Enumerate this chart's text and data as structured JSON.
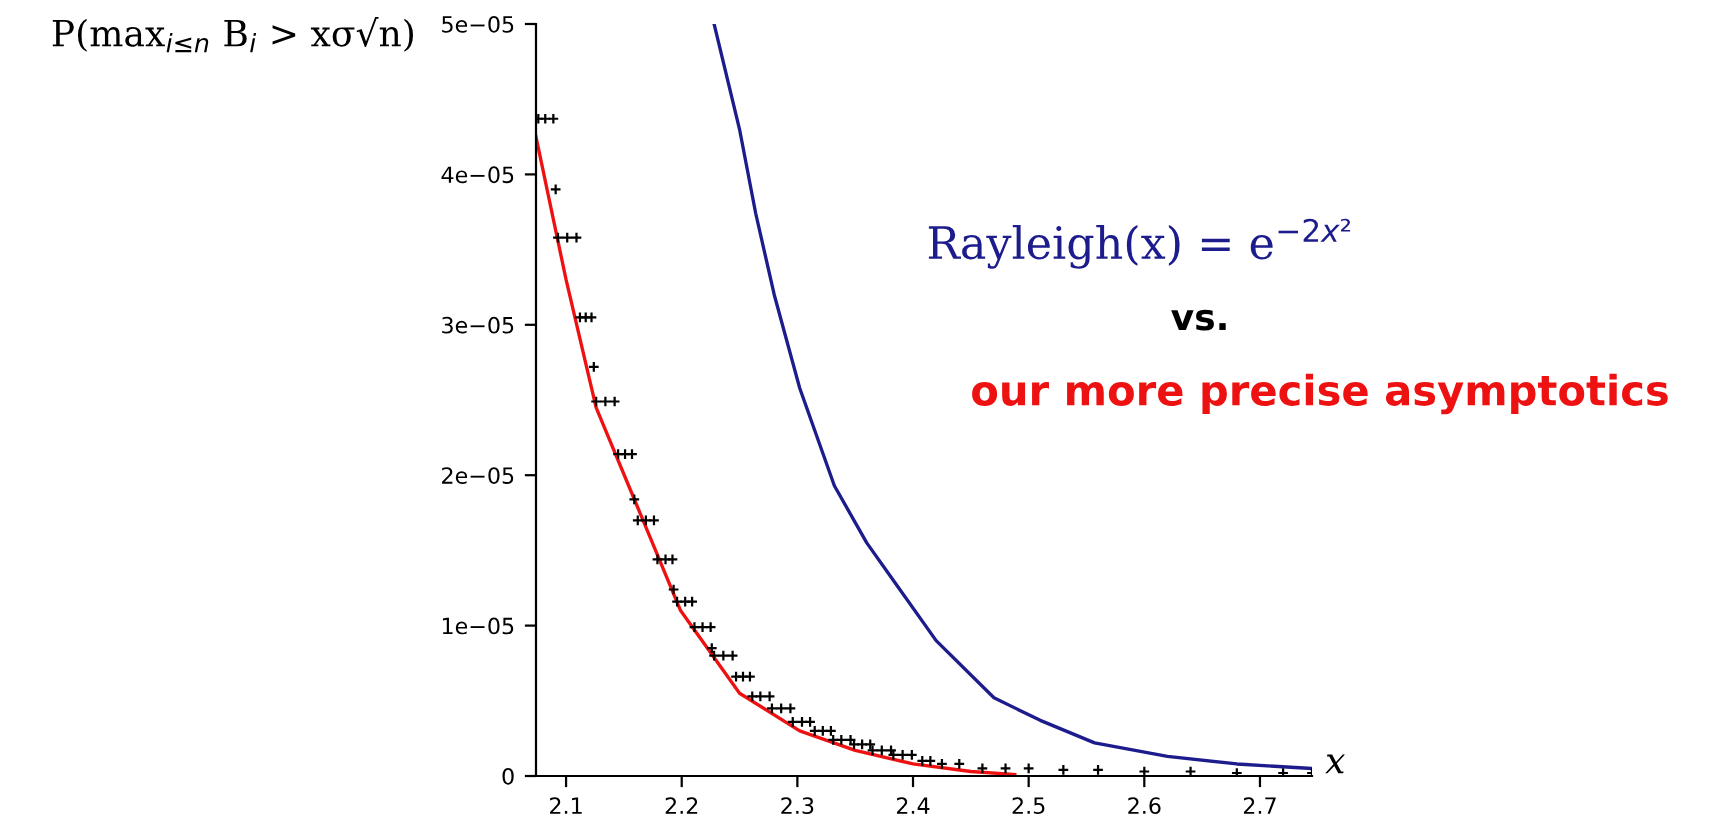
{
  "chart_data": {
    "type": "line",
    "ylabel": "P(max$_{i≤n}$ B$_{i}$ > xσ√n)",
    "xlabel": "x",
    "annotations": [
      "vs."
    ],
    "xlim": [
      2.074,
      2.745
    ],
    "ylim": [
      0,
      5e-05
    ],
    "xticks": [
      2.1,
      2.2,
      2.3,
      2.4,
      2.5,
      2.6,
      2.7
    ],
    "yticks": [
      0,
      {
        "value": 1e-05,
        "label": "1e−05"
      },
      {
        "value": 2e-05,
        "label": "2e−05"
      },
      {
        "value": 3e-05,
        "label": "3e−05"
      },
      {
        "value": 4e-05,
        "label": "4e−05"
      },
      {
        "value": 5e-05,
        "label": "5e−05"
      }
    ],
    "grid": false,
    "legend": false,
    "series": [
      {
        "name": "Rayleigh(x) = e$^{−2x²}$",
        "color": "#1c1c8c",
        "x": [
          2.228,
          2.25,
          2.264,
          2.28,
          2.302,
          2.332,
          2.36,
          2.384,
          2.42,
          2.47,
          2.51,
          2.557,
          2.62,
          2.68,
          2.745
        ],
        "values": [
          5e-05,
          4.3e-05,
          3.74e-05,
          3.2e-05,
          2.58e-05,
          1.93e-05,
          1.55e-05,
          1.29e-05,
          9e-06,
          5.2e-06,
          3.7e-06,
          2.2e-06,
          1.3e-06,
          8e-07,
          5e-07
        ]
      },
      {
        "name": "our more precise asymptotics",
        "color": "#ee1111",
        "x": [
          2.074,
          2.1,
          2.126,
          2.159,
          2.199,
          2.25,
          2.302,
          2.35,
          2.4,
          2.45,
          2.488
        ],
        "values": [
          4.25e-05,
          3.3e-05,
          2.45e-05,
          1.84e-05,
          1.1e-05,
          5.5e-06,
          3e-06,
          1.7e-06,
          8e-07,
          3e-07,
          1e-07
        ]
      },
      {
        "type": "scatter",
        "marker": "cross",
        "color": "#000000",
        "x": [
          2.076,
          2.082,
          2.089,
          2.091,
          2.093,
          2.101,
          2.109,
          2.112,
          2.117,
          2.122,
          2.124,
          2.126,
          2.134,
          2.142,
          2.145,
          2.151,
          2.157,
          2.159,
          2.162,
          2.169,
          2.176,
          2.179,
          2.186,
          2.192,
          2.193,
          2.196,
          2.203,
          2.209,
          2.211,
          2.218,
          2.225,
          2.226,
          2.228,
          2.236,
          2.244,
          2.247,
          2.253,
          2.259,
          2.261,
          2.268,
          2.276,
          2.278,
          2.286,
          2.294,
          2.296,
          2.304,
          2.311,
          2.315,
          2.322,
          2.329,
          2.331,
          2.338,
          2.346,
          2.349,
          2.356,
          2.363,
          2.365,
          2.373,
          2.381,
          2.383,
          2.391,
          2.399,
          2.408,
          2.415,
          2.425,
          2.44,
          2.46,
          2.48,
          2.5,
          2.53,
          2.56,
          2.6,
          2.64,
          2.68,
          2.72,
          2.745
        ],
        "values": [
          4.37e-05,
          4.37e-05,
          4.37e-05,
          3.9e-05,
          3.58e-05,
          3.58e-05,
          3.58e-05,
          3.05e-05,
          3.05e-05,
          3.05e-05,
          2.72e-05,
          2.49e-05,
          2.49e-05,
          2.49e-05,
          2.14e-05,
          2.14e-05,
          2.14e-05,
          1.84e-05,
          1.7e-05,
          1.7e-05,
          1.7e-05,
          1.44e-05,
          1.44e-05,
          1.44e-05,
          1.24e-05,
          1.16e-05,
          1.16e-05,
          1.16e-05,
          9.9e-06,
          9.9e-06,
          9.9e-06,
          8.5e-06,
          8e-06,
          8e-06,
          8e-06,
          6.6e-06,
          6.6e-06,
          6.6e-06,
          5.3e-06,
          5.3e-06,
          5.3e-06,
          4.5e-06,
          4.5e-06,
          4.5e-06,
          3.6e-06,
          3.6e-06,
          3.6e-06,
          3e-06,
          3e-06,
          3e-06,
          2.4e-06,
          2.4e-06,
          2.4e-06,
          2.1e-06,
          2.1e-06,
          2.1e-06,
          1.7e-06,
          1.7e-06,
          1.7e-06,
          1.4e-06,
          1.4e-06,
          1.4e-06,
          1e-06,
          1e-06,
          8e-07,
          8e-07,
          5e-07,
          5e-07,
          5e-07,
          4e-07,
          4e-07,
          3e-07,
          3e-07,
          2e-07,
          2e-07,
          2e-07
        ]
      }
    ]
  }
}
